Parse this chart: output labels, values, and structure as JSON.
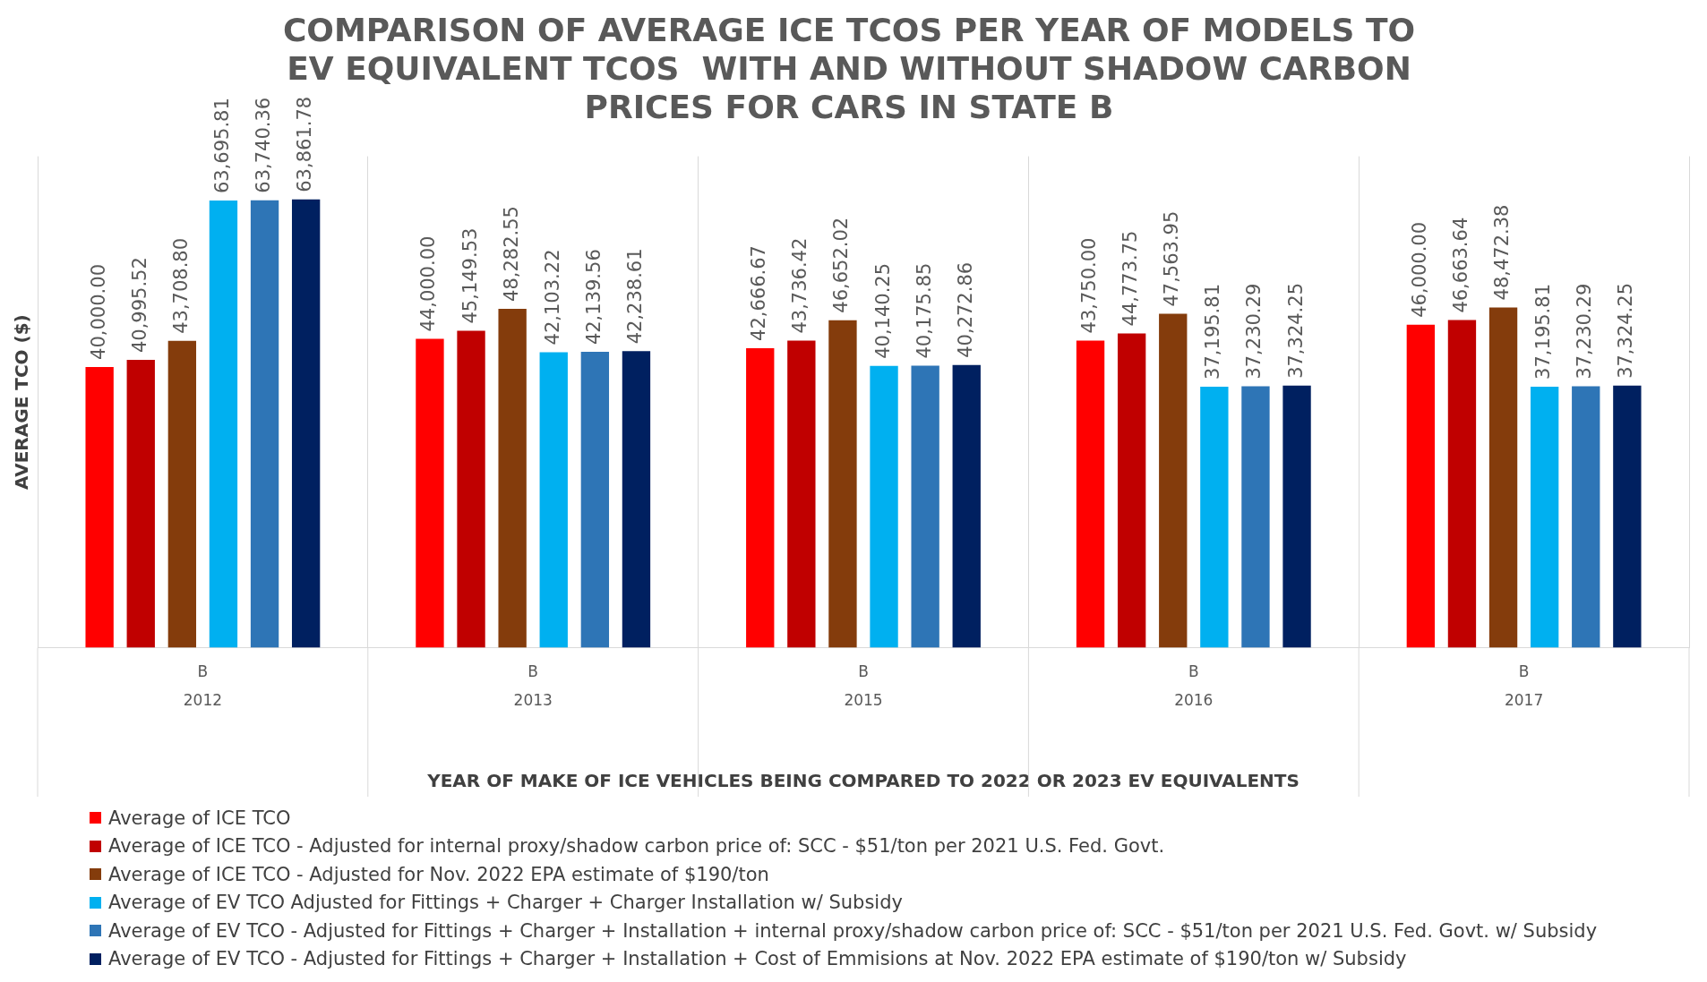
{
  "chart_data": {
    "type": "bar",
    "title": "COMPARISON OF AVERAGE ICE TCOS PER YEAR OF MODELS TO EV EQUIVALENT TCOS  WITH AND WITHOUT SHADOW CARBON PRICES FOR CARS IN STATE B",
    "xlabel": "YEAR OF MAKE OF ICE VEHICLES BEING COMPARED TO 2022 OR 2023 EV EQUIVALENTS",
    "ylabel": "AVERAGE TCO ($)",
    "categories": [
      "2012",
      "2013",
      "2015",
      "2016",
      "2017"
    ],
    "series": [
      {
        "name": "Average of ICE TCO",
        "color": "#ff0000",
        "values": [
          40000.0,
          44000.0,
          42666.67,
          43750.0,
          46000.0
        ],
        "value_labels": [
          "40,000.00",
          "44,000.00",
          "42,666.67",
          "43,750.00",
          "46,000.00"
        ]
      },
      {
        "name": "Average of ICE TCO - Adjusted for internal proxy/shadow carbon price of: SCC - $51/ton per 2021 U.S. Fed. Govt.",
        "color": "#c00000",
        "values": [
          40995.52,
          45149.53,
          43736.42,
          44773.75,
          46663.64
        ],
        "value_labels": [
          "40,995.52",
          "45,149.53",
          "43,736.42",
          "44,773.75",
          "46,663.64"
        ]
      },
      {
        "name": "Average of ICE TCO - Adjusted for Nov. 2022 EPA estimate of $190/ton",
        "color": "#843c0c",
        "values": [
          43708.8,
          48282.55,
          46652.02,
          47563.95,
          48472.38
        ],
        "value_labels": [
          "43,708.80",
          "48,282.55",
          "46,652.02",
          "47,563.95",
          "48,472.38"
        ]
      },
      {
        "name": "Average of EV TCO Adjusted for Fittings + Charger + Charger Installation w/ Subsidy",
        "color": "#00b0f0",
        "values": [
          63695.81,
          42103.22,
          40140.25,
          37195.81,
          37195.81
        ],
        "value_labels": [
          "63,695.81",
          "42,103.22",
          "40,140.25",
          "37,195.81",
          "37,195.81"
        ]
      },
      {
        "name": "Average of EV TCO - Adjusted for Fittings + Charger + Installation + internal proxy/shadow carbon price of: SCC - $51/ton per 2021 U.S. Fed. Govt. w/ Subsidy",
        "color": "#2e75b6",
        "values": [
          63740.36,
          42139.56,
          40175.85,
          37230.29,
          37230.29
        ],
        "value_labels": [
          "63,740.36",
          "42,139.56",
          "40,175.85",
          "37,230.29",
          "37,230.29"
        ]
      },
      {
        "name": "Average of EV TCO - Adjusted for Fittings + Charger + Installation + Cost of Emmisions at Nov. 2022 EPA estimate of $190/ton w/ Subsidy",
        "color": "#002060",
        "values": [
          63861.78,
          42238.61,
          40272.86,
          37324.25,
          37324.25
        ],
        "value_labels": [
          "63,861.78",
          "42,238.61",
          "40,272.86",
          "37,324.25",
          "37,324.25"
        ]
      }
    ],
    "annotations": [
      "B",
      "B",
      "B",
      "B",
      "B"
    ],
    "tick_labels": "x",
    "grid": "x",
    "legend": "bottom"
  }
}
